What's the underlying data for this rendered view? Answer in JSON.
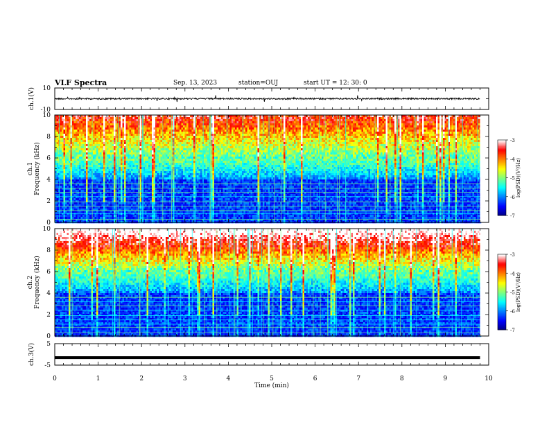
{
  "header": {
    "title": "VLF Spectra",
    "date": "Sep. 13, 2023",
    "station": "station=OUJ",
    "start": "start  UT =   12: 30: 0"
  },
  "chart_data": [
    {
      "type": "line",
      "name": "ch1-waveform",
      "ylabel": "ch.1(V)",
      "ylim": [
        -10,
        10
      ],
      "yticks": [
        "10",
        "-10"
      ],
      "xlim": [
        0,
        10
      ],
      "signal_level": 0,
      "signal_end_min": 9.8
    },
    {
      "type": "heatmap",
      "name": "ch1-spectrogram",
      "ylabel": "ch.1\nFrequency (kHz)",
      "ylabel_line1": "ch.1",
      "ylabel_line2": "Frequency (kHz)",
      "ylim": [
        0,
        10
      ],
      "yticks": [
        "0",
        "2",
        "4",
        "6",
        "8",
        "10"
      ],
      "xlim": [
        0,
        10
      ],
      "data_end_min": 9.8,
      "color_scale": {
        "label": "log(PSD)(V²/Hz)",
        "min": -7,
        "max": -3,
        "ticks": [
          "-3",
          "-4",
          "-5",
          "-6",
          "-7"
        ]
      },
      "palette": [
        "#00007f",
        "#0000ff",
        "#007fff",
        "#00ffff",
        "#7fff7f",
        "#ffff00",
        "#ff7f00",
        "#ff0000",
        "#ffffff"
      ]
    },
    {
      "type": "heatmap",
      "name": "ch2-spectrogram",
      "ylabel": "ch.2\nFrequency (kHz)",
      "ylabel_line1": "ch.2",
      "ylabel_line2": "Frequency (kHz)",
      "ylim": [
        0,
        10
      ],
      "yticks": [
        "0",
        "2",
        "4",
        "6",
        "8",
        "10"
      ],
      "xlim": [
        0,
        10
      ],
      "data_end_min": 9.8,
      "color_scale": {
        "label": "log(PSD)(V²/Hz)",
        "min": -7,
        "max": -3,
        "ticks": [
          "-3",
          "-4",
          "-5",
          "-6",
          "-7"
        ]
      },
      "palette": [
        "#00007f",
        "#0000ff",
        "#007fff",
        "#00ffff",
        "#7fff7f",
        "#ffff00",
        "#ff7f00",
        "#ff0000",
        "#ffffff"
      ]
    },
    {
      "type": "line",
      "name": "ch3-waveform",
      "ylabel": "ch.3(V)",
      "ylim": [
        -5,
        5
      ],
      "yticks": [
        "5",
        "-5"
      ],
      "xlim": [
        0,
        10
      ],
      "signal_level": -1.5,
      "signal_end_min": 9.8
    }
  ],
  "xaxis": {
    "label": "Time (min)",
    "ticks": [
      "0",
      "1",
      "2",
      "3",
      "4",
      "5",
      "6",
      "7",
      "8",
      "9",
      "10"
    ]
  }
}
